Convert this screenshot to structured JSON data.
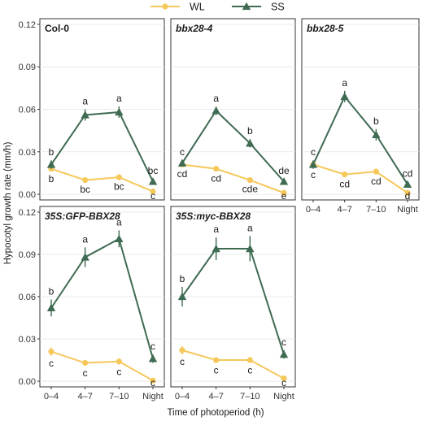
{
  "legend": {
    "items": [
      {
        "name": "WL",
        "color": "#f5c85a",
        "marker": "circle"
      },
      {
        "name": "SS",
        "color": "#3f6b52",
        "marker": "triangle"
      }
    ],
    "position": "top"
  },
  "chart_data": {
    "type": "line",
    "categories": [
      "0–4",
      "4–7",
      "7–10",
      "Night"
    ],
    "xlabel": "Time of photoperiod (h)",
    "ylabel": "Hypocotyl growth rate (mm/h)",
    "panels": [
      {
        "title": "Col-0",
        "title_italic": false,
        "ylim": [
          -0.004,
          0.124
        ],
        "yticks": [
          "0.00",
          "0.03",
          "0.06",
          "0.09",
          "0.12"
        ],
        "show_x_ticks": false,
        "series": [
          {
            "name": "WL",
            "values": [
              0.018,
              0.01,
              0.012,
              0.002
            ],
            "errors": [
              0.002,
              0.0015,
              0.0015,
              0.001
            ],
            "letters": [
              "b",
              "bc",
              "bc",
              "c"
            ]
          },
          {
            "name": "SS",
            "values": [
              0.021,
              0.056,
              0.058,
              0.009
            ],
            "errors": [
              0.003,
              0.004,
              0.004,
              0.002
            ],
            "letters": [
              "b",
              "a",
              "a",
              "bc"
            ]
          }
        ]
      },
      {
        "title": "bbx28-4",
        "title_italic": true,
        "ylim": [
          -0.004,
          0.124
        ],
        "yticks": [],
        "show_x_ticks": false,
        "series": [
          {
            "name": "WL",
            "values": [
              0.021,
              0.018,
              0.01,
              0.001
            ],
            "errors": [
              0.0015,
              0.0015,
              0.0012,
              0.001
            ],
            "letters": [
              "cd",
              "cd",
              "cde",
              "e"
            ]
          },
          {
            "name": "SS",
            "values": [
              0.022,
              0.059,
              0.036,
              0.009
            ],
            "errors": [
              0.002,
              0.003,
              0.003,
              0.002
            ],
            "letters": [
              "c",
              "a",
              "b",
              "de"
            ]
          }
        ]
      },
      {
        "title": "bbx28-5",
        "title_italic": true,
        "ylim": [
          -0.004,
          0.124
        ],
        "yticks": [],
        "show_x_ticks": true,
        "series": [
          {
            "name": "WL",
            "values": [
              0.021,
              0.014,
              0.016,
              0.001
            ],
            "errors": [
              0.002,
              0.0015,
              0.0015,
              0.001
            ],
            "letters": [
              "c",
              "cd",
              "cd",
              "d"
            ]
          },
          {
            "name": "SS",
            "values": [
              0.021,
              0.069,
              0.042,
              0.007
            ],
            "errors": [
              0.003,
              0.004,
              0.004,
              0.002
            ],
            "letters": [
              "c",
              "a",
              "b",
              "cd"
            ]
          }
        ]
      },
      {
        "title": "35S:GFP-BBX28",
        "title_italic": true,
        "ylim": [
          -0.004,
          0.124
        ],
        "yticks": [
          "0.00",
          "0.03",
          "0.06",
          "0.09",
          "0.12"
        ],
        "show_x_ticks": true,
        "series": [
          {
            "name": "WL",
            "values": [
              0.021,
              0.013,
              0.014,
              0.0005
            ],
            "errors": [
              0.003,
              0.002,
              0.002,
              0.001
            ],
            "letters": [
              "c",
              "c",
              "c",
              "c"
            ]
          },
          {
            "name": "SS",
            "values": [
              0.052,
              0.088,
              0.101,
              0.016
            ],
            "errors": [
              0.006,
              0.007,
              0.006,
              0.003
            ],
            "letters": [
              "b",
              "a",
              "a",
              "c"
            ]
          }
        ]
      },
      {
        "title": "35S:myc-BBX28",
        "title_italic": true,
        "ylim": [
          -0.004,
          0.124
        ],
        "yticks": [],
        "show_x_ticks": true,
        "series": [
          {
            "name": "WL",
            "values": [
              0.022,
              0.015,
              0.015,
              0.002
            ],
            "errors": [
              0.003,
              0.002,
              0.002,
              0.001
            ],
            "letters": [
              "c",
              "c",
              "c",
              "c"
            ]
          },
          {
            "name": "SS",
            "values": [
              0.06,
              0.094,
              0.094,
              0.019
            ],
            "errors": [
              0.007,
              0.008,
              0.009,
              0.003
            ],
            "letters": [
              "b",
              "a",
              "a",
              "c"
            ]
          }
        ]
      }
    ]
  }
}
